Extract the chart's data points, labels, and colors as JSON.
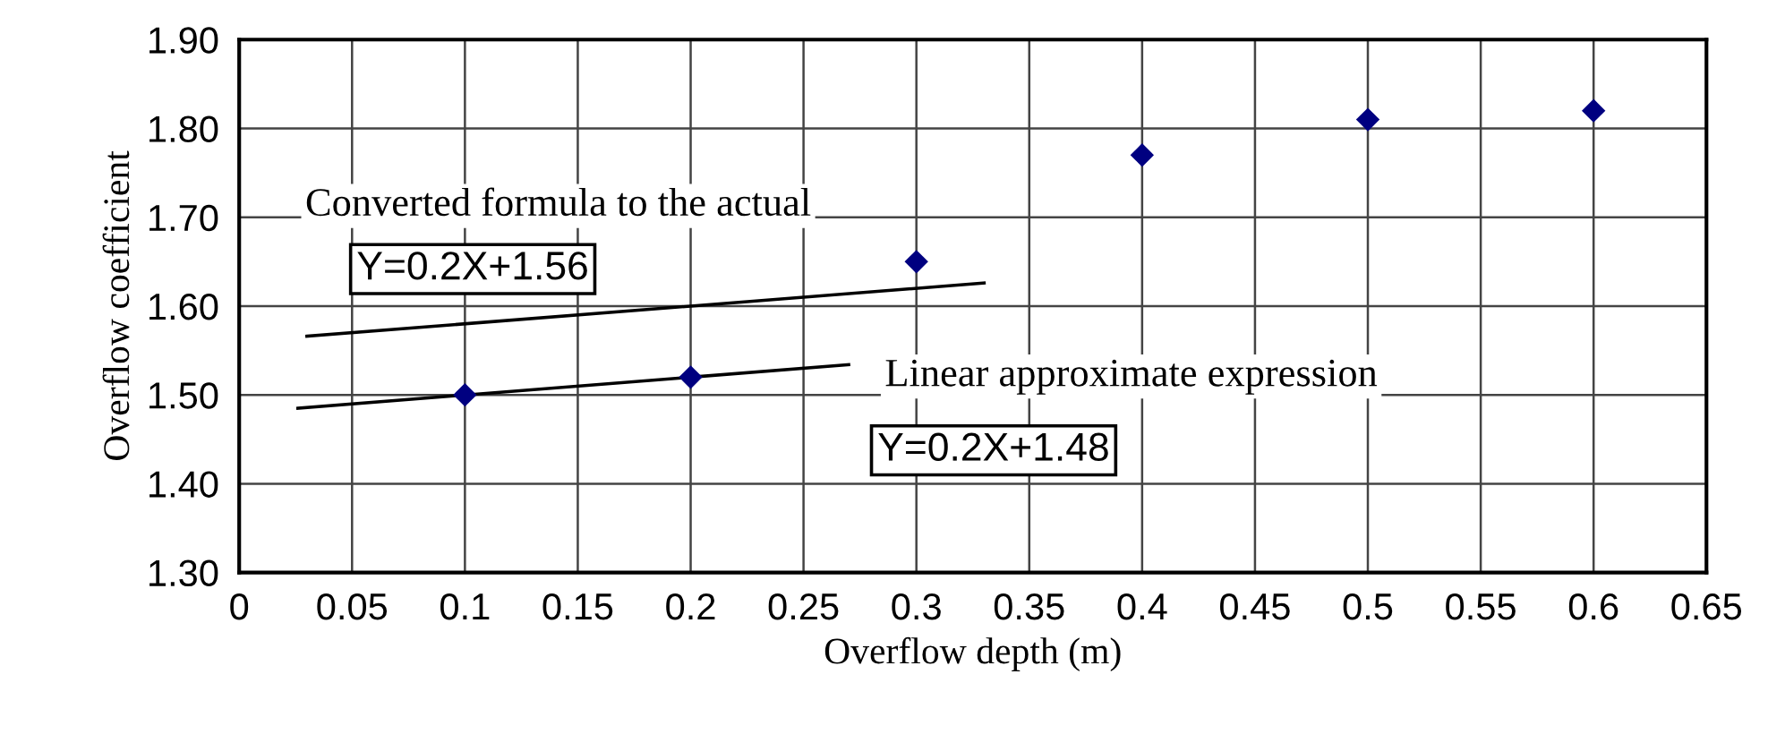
{
  "chart_data": {
    "type": "scatter",
    "xlabel": "Overflow depth (m)",
    "ylabel": "Overflow coefficient",
    "marker": "diamond",
    "grid": true,
    "legend": false,
    "xlim": [
      0,
      0.65
    ],
    "xticks": [
      0,
      0.05,
      0.1,
      0.15,
      0.2,
      0.25,
      0.3,
      0.35,
      0.4,
      0.45,
      0.5,
      0.55,
      0.6,
      0.65
    ],
    "ylim": [
      1.3,
      1.9
    ],
    "yticks": [
      {
        "value": 1.3,
        "label": "1.30"
      },
      {
        "value": 1.4,
        "label": "1.40"
      },
      {
        "value": 1.5,
        "label": "1.50"
      },
      {
        "value": 1.6,
        "label": "1.60"
      },
      {
        "value": 1.7,
        "label": "1.70"
      },
      {
        "value": 1.8,
        "label": "1.80"
      },
      {
        "value": 1.9,
        "label": "1.90"
      }
    ],
    "series": [
      {
        "color": "#000080",
        "x": [
          0.1,
          0.2,
          0.3,
          0.4,
          0.5,
          0.6
        ],
        "values": [
          1.5,
          1.52,
          1.65,
          1.77,
          1.81,
          1.82
        ]
      },
      {
        "type": "line",
        "color": "#000000",
        "marker": "none",
        "x": [
          0.03,
          0.33
        ],
        "values": [
          1.566,
          1.626
        ]
      },
      {
        "type": "line",
        "color": "#000000",
        "marker": "none",
        "x": [
          0.026,
          0.27
        ],
        "values": [
          1.485,
          1.534
        ]
      }
    ],
    "annotations": [
      "Converted formula to the actual",
      "Y=0.2X+1.56",
      "Linear approximate expression",
      "Y=0.2X+1.48"
    ]
  }
}
